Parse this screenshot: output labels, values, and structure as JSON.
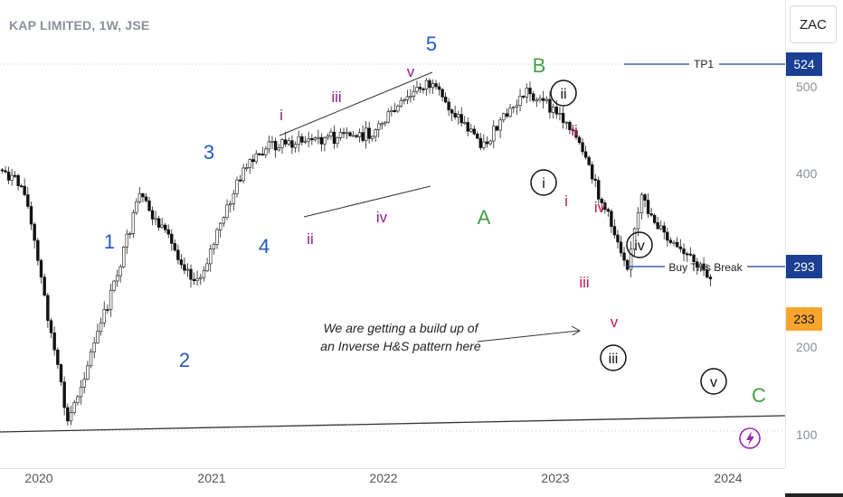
{
  "header": {
    "symbol": "KAP LIMITED",
    "interval": "1W",
    "exchange": "JSE"
  },
  "currency_button": "ZAC",
  "price_axis": {
    "ticks": [
      "500",
      "400",
      "200",
      "100"
    ]
  },
  "time_axis": {
    "ticks": [
      "2020",
      "2021",
      "2022",
      "2023",
      "2024"
    ]
  },
  "levels": {
    "tp1": {
      "label": "TP1",
      "value": "524",
      "color": "#1a3f93"
    },
    "buy_break": {
      "label": "Buy This Break",
      "value": "293",
      "color": "#1a3f93"
    },
    "current": {
      "value": "233",
      "color": "#f7a52d"
    }
  },
  "annotation": {
    "line1": "We are getting a build up of",
    "line2": "an Inverse H&S pattern here"
  },
  "wave_labels": {
    "blue": [
      "1",
      "2",
      "3",
      "4",
      "5"
    ],
    "green": [
      "A",
      "B",
      "C"
    ],
    "purple": [
      "i",
      "ii",
      "iii",
      "iv",
      "v"
    ],
    "red": [
      "i",
      "ii",
      "iii",
      "iv",
      "v"
    ],
    "black_circled": [
      "i",
      "ii",
      "iii",
      "iv",
      "v"
    ]
  },
  "colors": {
    "blue_wave": "#2757c4",
    "green_wave": "#43a047",
    "purple_wave": "#8e1e8c",
    "red_wave": "#c2185b"
  },
  "chart_data": {
    "type": "candlestick",
    "title": "KAP LIMITED, 1W, JSE",
    "y_axis": {
      "scale": "log",
      "ticks": [
        100,
        200,
        400,
        500
      ]
    },
    "x_axis": {
      "ticks": [
        "2020",
        "2021",
        "2022",
        "2023",
        "2024"
      ]
    },
    "horizontal_levels": [
      {
        "label": "TP1",
        "value": 524
      },
      {
        "label": "Buy This Break",
        "value": 293
      },
      {
        "label": "current",
        "value": 233
      }
    ],
    "approx_path": [
      {
        "date": "2019-05",
        "price": 440
      },
      {
        "date": "2019-08",
        "price": 390
      },
      {
        "date": "2019-12",
        "price": 310
      },
      {
        "date": "2020-03",
        "price": 105
      },
      {
        "date": "2020-06",
        "price": 190
      },
      {
        "date": "2020-08",
        "price": 300
      },
      {
        "date": "2020-12",
        "price": 200
      },
      {
        "date": "2021-03",
        "price": 330
      },
      {
        "date": "2021-05",
        "price": 380
      },
      {
        "date": "2021-08",
        "price": 390
      },
      {
        "date": "2021-12",
        "price": 400
      },
      {
        "date": "2022-04",
        "price": 510
      },
      {
        "date": "2022-08",
        "price": 380
      },
      {
        "date": "2022-11",
        "price": 490
      },
      {
        "date": "2023-02",
        "price": 420
      },
      {
        "date": "2023-06",
        "price": 220
      },
      {
        "date": "2023-07",
        "price": 295
      },
      {
        "date": "2023-09",
        "price": 240
      },
      {
        "date": "2023-12",
        "price": 205
      },
      {
        "date": "2024-02",
        "price": 233
      }
    ]
  }
}
